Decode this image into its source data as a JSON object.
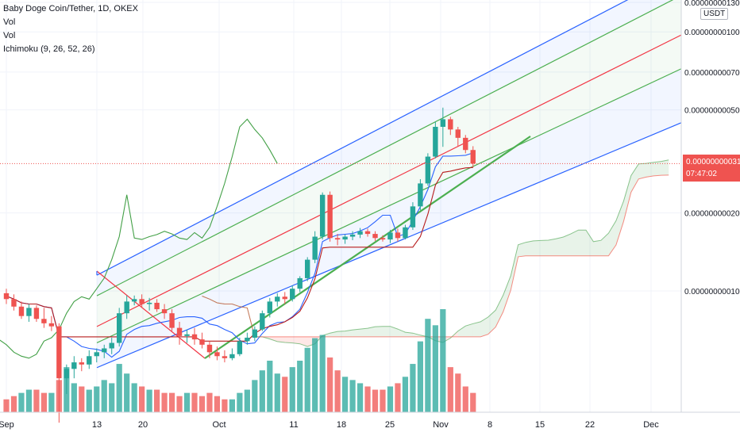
{
  "legend": {
    "symbol_line": "Baby Doge Coin/Tether, 1D, OKEX",
    "vol1": "Vol",
    "vol2": "Vol",
    "ichimoku": "Ichimoku (9, 26, 52, 26)"
  },
  "price_tag": {
    "price": "0.0000000003102",
    "countdown": "07:47:02"
  },
  "unit_label": "USDT",
  "colors": {
    "up": "#26a69a",
    "down": "#ef5350",
    "conversion_line": "#2962ff",
    "base_line": "#b71c1c",
    "lagging_span": "#43a047",
    "channel_outer": "#2962ff",
    "channel_inner": "#4caf50",
    "channel_mid": "#f23645",
    "trendline": "#4caf50"
  },
  "chart_data": {
    "type": "candlestick",
    "title": "Baby Doge Coin/Tether, 1D, OKEX",
    "scale": "log",
    "price_axis_labels": [
      "0.0000000013000",
      "0.0000000010000",
      "0.0000000007000",
      "0.0000000005000",
      "0.0000000002000",
      "0.0000000001000"
    ],
    "price_axis_values": [
      1.3e-09,
      1e-09,
      7e-10,
      5e-10,
      2e-10,
      1e-10
    ],
    "time_axis_labels": [
      "Sep",
      "13",
      "20",
      "Oct",
      "11",
      "18",
      "25",
      "Nov",
      "8",
      "15",
      "22",
      "Dec"
    ],
    "last_price": "0.0000000003102",
    "candles": [
      {
        "d": "Sep 5",
        "o": 9.8e-11,
        "h": 1.02e-10,
        "l": 8.9e-11,
        "c": 9.3e-11
      },
      {
        "d": "Sep 6",
        "o": 9.3e-11,
        "h": 9.7e-11,
        "l": 8.4e-11,
        "c": 8.7e-11
      },
      {
        "d": "Sep 7",
        "o": 8.7e-11,
        "h": 9.1e-11,
        "l": 7.8e-11,
        "c": 8e-11
      },
      {
        "d": "Sep 8",
        "o": 8e-11,
        "h": 8.9e-11,
        "l": 7.6e-11,
        "c": 8.6e-11
      },
      {
        "d": "Sep 9",
        "o": 8.6e-11,
        "h": 8.8e-11,
        "l": 7.6e-11,
        "c": 7.8e-11
      },
      {
        "d": "Sep 10",
        "o": 7.8e-11,
        "h": 8.6e-11,
        "l": 7.2e-11,
        "c": 7.5e-11
      },
      {
        "d": "Sep 11",
        "o": 7.5e-11,
        "h": 8e-11,
        "l": 7e-11,
        "c": 7.3e-11
      },
      {
        "d": "Sep 12",
        "o": 7.3e-11,
        "h": 7.5e-11,
        "l": 3.1e-11,
        "c": 4.6e-11
      },
      {
        "d": "Sep 13",
        "o": 4.6e-11,
        "h": 5.2e-11,
        "l": 4e-11,
        "c": 5e-11
      },
      {
        "d": "Sep 14",
        "o": 5e-11,
        "h": 5.6e-11,
        "l": 4.6e-11,
        "c": 5.3e-11
      },
      {
        "d": "Sep 15",
        "o": 5.3e-11,
        "h": 5.5e-11,
        "l": 4.9e-11,
        "c": 5.2e-11
      },
      {
        "d": "Sep 16",
        "o": 5.2e-11,
        "h": 5.9e-11,
        "l": 5e-11,
        "c": 5.6e-11
      },
      {
        "d": "Sep 17",
        "o": 5.6e-11,
        "h": 6e-11,
        "l": 5.3e-11,
        "c": 5.8e-11
      },
      {
        "d": "Sep 18",
        "o": 5.8e-11,
        "h": 6.2e-11,
        "l": 5.5e-11,
        "c": 6e-11
      },
      {
        "d": "Sep 19",
        "o": 6e-11,
        "h": 6.6e-11,
        "l": 5.7e-11,
        "c": 6.3e-11
      },
      {
        "d": "Sep 20",
        "o": 6.3e-11,
        "h": 8.6e-11,
        "l": 6.1e-11,
        "c": 8.2e-11
      },
      {
        "d": "Sep 21",
        "o": 8.2e-11,
        "h": 9.6e-11,
        "l": 7.8e-11,
        "c": 9.1e-11
      },
      {
        "d": "Sep 22",
        "o": 9.1e-11,
        "h": 9.6e-11,
        "l": 8.8e-11,
        "c": 9.3e-11
      },
      {
        "d": "Sep 23",
        "o": 9.3e-11,
        "h": 9.7e-11,
        "l": 8.6e-11,
        "c": 8.9e-11
      },
      {
        "d": "Sep 24",
        "o": 8.9e-11,
        "h": 9.4e-11,
        "l": 8.4e-11,
        "c": 9e-11
      },
      {
        "d": "Sep 25",
        "o": 9e-11,
        "h": 9.3e-11,
        "l": 8.3e-11,
        "c": 8.5e-11
      },
      {
        "d": "Sep 26",
        "o": 8.5e-11,
        "h": 8.9e-11,
        "l": 7.8e-11,
        "c": 8.2e-11
      },
      {
        "d": "Sep 27",
        "o": 8.2e-11,
        "h": 8.5e-11,
        "l": 7e-11,
        "c": 7.2e-11
      },
      {
        "d": "Sep 28",
        "o": 7.2e-11,
        "h": 7.6e-11,
        "l": 6.2e-11,
        "c": 6.7e-11
      },
      {
        "d": "Sep 29",
        "o": 6.7e-11,
        "h": 7.1e-11,
        "l": 6.3e-11,
        "c": 6.8e-11
      },
      {
        "d": "Sep 30",
        "o": 6.8e-11,
        "h": 7.2e-11,
        "l": 6.2e-11,
        "c": 6.5e-11
      },
      {
        "d": "Oct 1",
        "o": 6.5e-11,
        "h": 6.9e-11,
        "l": 6e-11,
        "c": 6.2e-11
      },
      {
        "d": "Oct 2",
        "o": 6.2e-11,
        "h": 6.4e-11,
        "l": 5.5e-11,
        "c": 5.8e-11
      },
      {
        "d": "Oct 3",
        "o": 5.8e-11,
        "h": 6.1e-11,
        "l": 5.4e-11,
        "c": 5.6e-11
      },
      {
        "d": "Oct 4",
        "o": 5.6e-11,
        "h": 5.9e-11,
        "l": 5.3e-11,
        "c": 5.5e-11
      },
      {
        "d": "Oct 5",
        "o": 5.5e-11,
        "h": 6e-11,
        "l": 5.4e-11,
        "c": 5.7e-11
      },
      {
        "d": "Oct 6",
        "o": 5.7e-11,
        "h": 6.6e-11,
        "l": 5.6e-11,
        "c": 6.4e-11
      },
      {
        "d": "Oct 7",
        "o": 6.4e-11,
        "h": 6.9e-11,
        "l": 6.2e-11,
        "c": 6.6e-11
      },
      {
        "d": "Oct 8",
        "o": 6.6e-11,
        "h": 7.3e-11,
        "l": 6.4e-11,
        "c": 7.1e-11
      },
      {
        "d": "Oct 9",
        "o": 7.1e-11,
        "h": 8.4e-11,
        "l": 7e-11,
        "c": 8.2e-11
      },
      {
        "d": "Oct 10",
        "o": 8.2e-11,
        "h": 9.4e-11,
        "l": 7.9e-11,
        "c": 9.1e-11
      },
      {
        "d": "Oct 11",
        "o": 9.1e-11,
        "h": 9.8e-11,
        "l": 8.7e-11,
        "c": 9.5e-11
      },
      {
        "d": "Oct 12",
        "o": 9.5e-11,
        "h": 9.9e-11,
        "l": 8.9e-11,
        "c": 9.3e-11
      },
      {
        "d": "Oct 13",
        "o": 9.3e-11,
        "h": 1.05e-10,
        "l": 9.1e-11,
        "c": 1.02e-10
      },
      {
        "d": "Oct 14",
        "o": 1.02e-10,
        "h": 1.14e-10,
        "l": 9.9e-11,
        "c": 1.12e-10
      },
      {
        "d": "Oct 15",
        "o": 1.12e-10,
        "h": 1.35e-10,
        "l": 1.09e-10,
        "c": 1.32e-10
      },
      {
        "d": "Oct 16",
        "o": 1.32e-10,
        "h": 1.7e-10,
        "l": 1.28e-10,
        "c": 1.62e-10
      },
      {
        "d": "Oct 17",
        "o": 1.62e-10,
        "h": 2.4e-10,
        "l": 1.58e-10,
        "c": 2.35e-10
      },
      {
        "d": "Oct 18",
        "o": 2.35e-10,
        "h": 2.42e-10,
        "l": 1.55e-10,
        "c": 1.6e-10
      },
      {
        "d": "Oct 19",
        "o": 1.6e-10,
        "h": 1.66e-10,
        "l": 1.5e-10,
        "c": 1.58e-10
      },
      {
        "d": "Oct 20",
        "o": 1.58e-10,
        "h": 1.65e-10,
        "l": 1.52e-10,
        "c": 1.62e-10
      },
      {
        "d": "Oct 21",
        "o": 1.62e-10,
        "h": 1.7e-10,
        "l": 1.57e-10,
        "c": 1.65e-10
      },
      {
        "d": "Oct 22",
        "o": 1.65e-10,
        "h": 1.75e-10,
        "l": 1.6e-10,
        "c": 1.7e-10
      },
      {
        "d": "Oct 23",
        "o": 1.7e-10,
        "h": 1.74e-10,
        "l": 1.62e-10,
        "c": 1.66e-10
      },
      {
        "d": "Oct 24",
        "o": 1.66e-10,
        "h": 1.7e-10,
        "l": 1.56e-10,
        "c": 1.6e-10
      },
      {
        "d": "Oct 25",
        "o": 1.6e-10,
        "h": 1.64e-10,
        "l": 1.55e-10,
        "c": 1.58e-10
      },
      {
        "d": "Oct 26",
        "o": 1.58e-10,
        "h": 1.72e-10,
        "l": 1.53e-10,
        "c": 1.68e-10
      },
      {
        "d": "Oct 27",
        "o": 1.68e-10,
        "h": 1.74e-10,
        "l": 1.55e-10,
        "c": 1.6e-10
      },
      {
        "d": "Oct 28",
        "o": 1.6e-10,
        "h": 1.8e-10,
        "l": 1.58e-10,
        "c": 1.76e-10
      },
      {
        "d": "Oct 29",
        "o": 1.76e-10,
        "h": 2.2e-10,
        "l": 1.72e-10,
        "c": 2.12e-10
      },
      {
        "d": "Oct 30",
        "o": 2.12e-10,
        "h": 2.7e-10,
        "l": 2.05e-10,
        "c": 2.6e-10
      },
      {
        "d": "Oct 31",
        "o": 2.6e-10,
        "h": 3.4e-10,
        "l": 2.55e-10,
        "c": 3.3e-10
      },
      {
        "d": "Nov 1",
        "o": 3.3e-10,
        "h": 4.5e-10,
        "l": 3.25e-10,
        "c": 4.3e-10
      },
      {
        "d": "Nov 2",
        "o": 4.3e-10,
        "h": 5.1e-10,
        "l": 3.6e-10,
        "c": 4.6e-10
      },
      {
        "d": "Nov 3",
        "o": 4.6e-10,
        "h": 4.7e-10,
        "l": 4e-10,
        "c": 4.2e-10
      },
      {
        "d": "Nov 4",
        "o": 4.2e-10,
        "h": 4.3e-10,
        "l": 3.6e-10,
        "c": 3.9e-10
      },
      {
        "d": "Nov 5",
        "o": 3.9e-10,
        "h": 4e-10,
        "l": 3.4e-10,
        "c": 3.5e-10
      },
      {
        "d": "Nov 6",
        "o": 3.5e-10,
        "h": 3.62e-10,
        "l": 3e-10,
        "c": 3.102e-10
      }
    ],
    "volume_bars": [
      4,
      5,
      6,
      7,
      7,
      6,
      6,
      10,
      14,
      9,
      8,
      7,
      8,
      10,
      9,
      15,
      12,
      9,
      8,
      7,
      7,
      6,
      6,
      5,
      6,
      6,
      5,
      6,
      5,
      4,
      4,
      6,
      7,
      10,
      13,
      16,
      12,
      11,
      14,
      16,
      20,
      23,
      24,
      17,
      13,
      11,
      10,
      9,
      8,
      7,
      7,
      8,
      9,
      11,
      15,
      22,
      29,
      27,
      32,
      14,
      12,
      8,
      6
    ],
    "volume_colors": [
      "d",
      "d",
      "u",
      "u",
      "d",
      "d",
      "u",
      "d",
      "u",
      "u",
      "d",
      "u",
      "u",
      "u",
      "u",
      "u",
      "u",
      "u",
      "d",
      "u",
      "d",
      "d",
      "d",
      "d",
      "u",
      "d",
      "d",
      "d",
      "d",
      "d",
      "u",
      "u",
      "u",
      "u",
      "u",
      "u",
      "u",
      "d",
      "u",
      "u",
      "u",
      "u",
      "u",
      "d",
      "d",
      "u",
      "u",
      "u",
      "d",
      "d",
      "d",
      "u",
      "d",
      "u",
      "u",
      "u",
      "u",
      "u",
      "u",
      "d",
      "d",
      "d",
      "d"
    ]
  }
}
